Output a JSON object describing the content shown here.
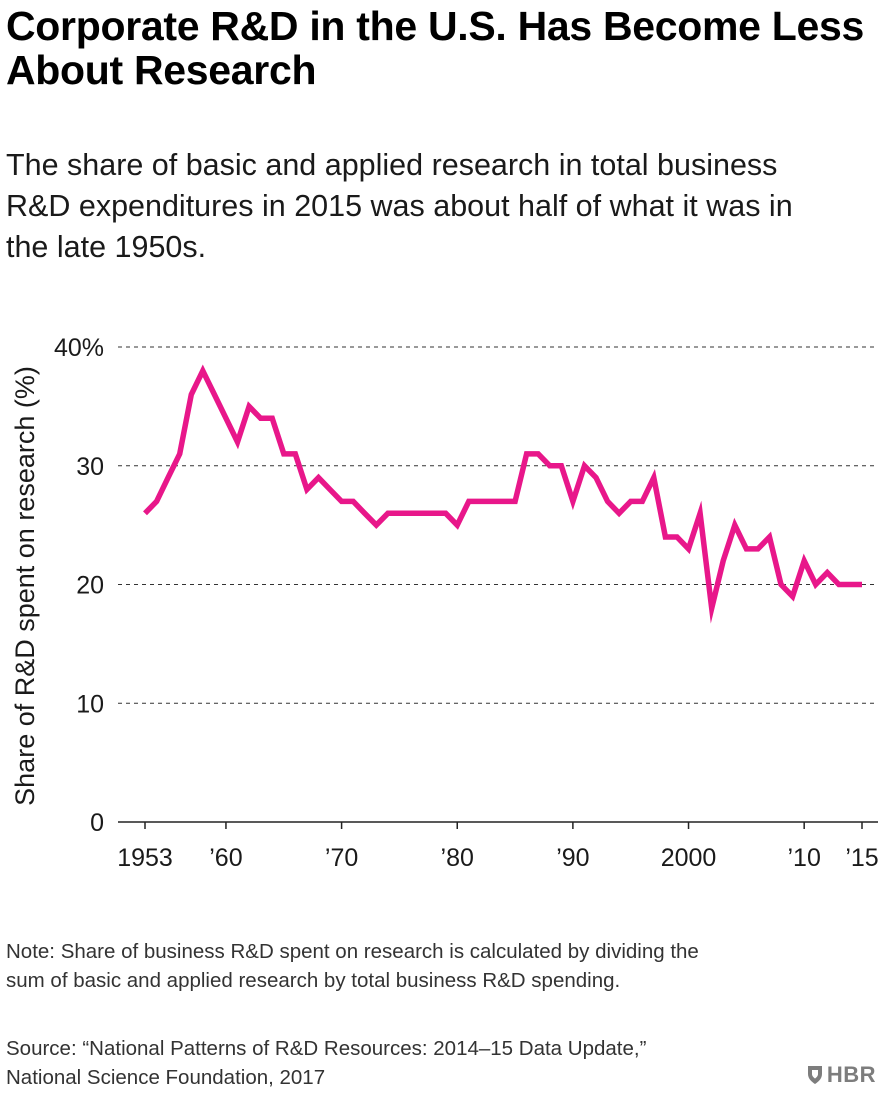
{
  "header": {
    "title": "Corporate R&D in the U.S. Has Become Less About Research",
    "subtitle": "The share of basic and applied research in total business R&D expenditures in 2015 was about half of what it was in the late 1950s."
  },
  "chart_data": {
    "type": "line",
    "title": "Corporate R&D in the U.S. Has Become Less About Research",
    "subtitle": "The share of basic and applied research in total business R&D expenditures in 2015 was about half of what it was in the late 1950s.",
    "xlabel": "",
    "ylabel": "Share of R&D spent on research (%)",
    "xlim": [
      1953,
      2015
    ],
    "ylim": [
      0,
      40
    ],
    "grid": true,
    "x_ticks": [
      {
        "value": 1953,
        "label": "1953"
      },
      {
        "value": 1960,
        "label": "’60"
      },
      {
        "value": 1970,
        "label": "’70"
      },
      {
        "value": 1980,
        "label": "’80"
      },
      {
        "value": 1990,
        "label": "’90"
      },
      {
        "value": 2000,
        "label": "2000"
      },
      {
        "value": 2010,
        "label": "’10"
      },
      {
        "value": 2015,
        "label": "’15"
      }
    ],
    "y_ticks": [
      {
        "value": 0,
        "label": "0"
      },
      {
        "value": 10,
        "label": "10"
      },
      {
        "value": 20,
        "label": "20"
      },
      {
        "value": 30,
        "label": "30"
      },
      {
        "value": 40,
        "label": "40%"
      }
    ],
    "series": [
      {
        "color": "#e8178a",
        "x": [
          1953,
          1954,
          1955,
          1956,
          1957,
          1958,
          1959,
          1960,
          1961,
          1962,
          1963,
          1964,
          1965,
          1966,
          1967,
          1968,
          1969,
          1970,
          1971,
          1972,
          1973,
          1974,
          1975,
          1976,
          1977,
          1978,
          1979,
          1980,
          1981,
          1982,
          1983,
          1984,
          1985,
          1986,
          1987,
          1988,
          1989,
          1990,
          1991,
          1992,
          1993,
          1994,
          1995,
          1996,
          1997,
          1998,
          1999,
          2000,
          2001,
          2002,
          2003,
          2004,
          2005,
          2006,
          2007,
          2008,
          2009,
          2010,
          2011,
          2012,
          2013,
          2014,
          2015
        ],
        "values": [
          26,
          27,
          29,
          31,
          36,
          38,
          36,
          34,
          32,
          35,
          34,
          34,
          31,
          31,
          28,
          29,
          28,
          27,
          27,
          26,
          25,
          26,
          26,
          26,
          26,
          26,
          26,
          25,
          27,
          27,
          27,
          27,
          27,
          31,
          31,
          30,
          30,
          27,
          30,
          29,
          27,
          26,
          27,
          27,
          29,
          24,
          24,
          23,
          26,
          18,
          22,
          25,
          23,
          23,
          24,
          20,
          19,
          22,
          20,
          21,
          20,
          20,
          20
        ]
      }
    ]
  },
  "footer": {
    "note": "Note: Share of business R&D spent on research is calculated by dividing the sum of basic and applied research by total business R&D spending.",
    "source": "Source: “National Patterns of R&D Resources: 2014–15 Data Update,” National Science Foundation, 2017",
    "logo_text": "HBR",
    "logo_color": "#7d7d7d"
  }
}
